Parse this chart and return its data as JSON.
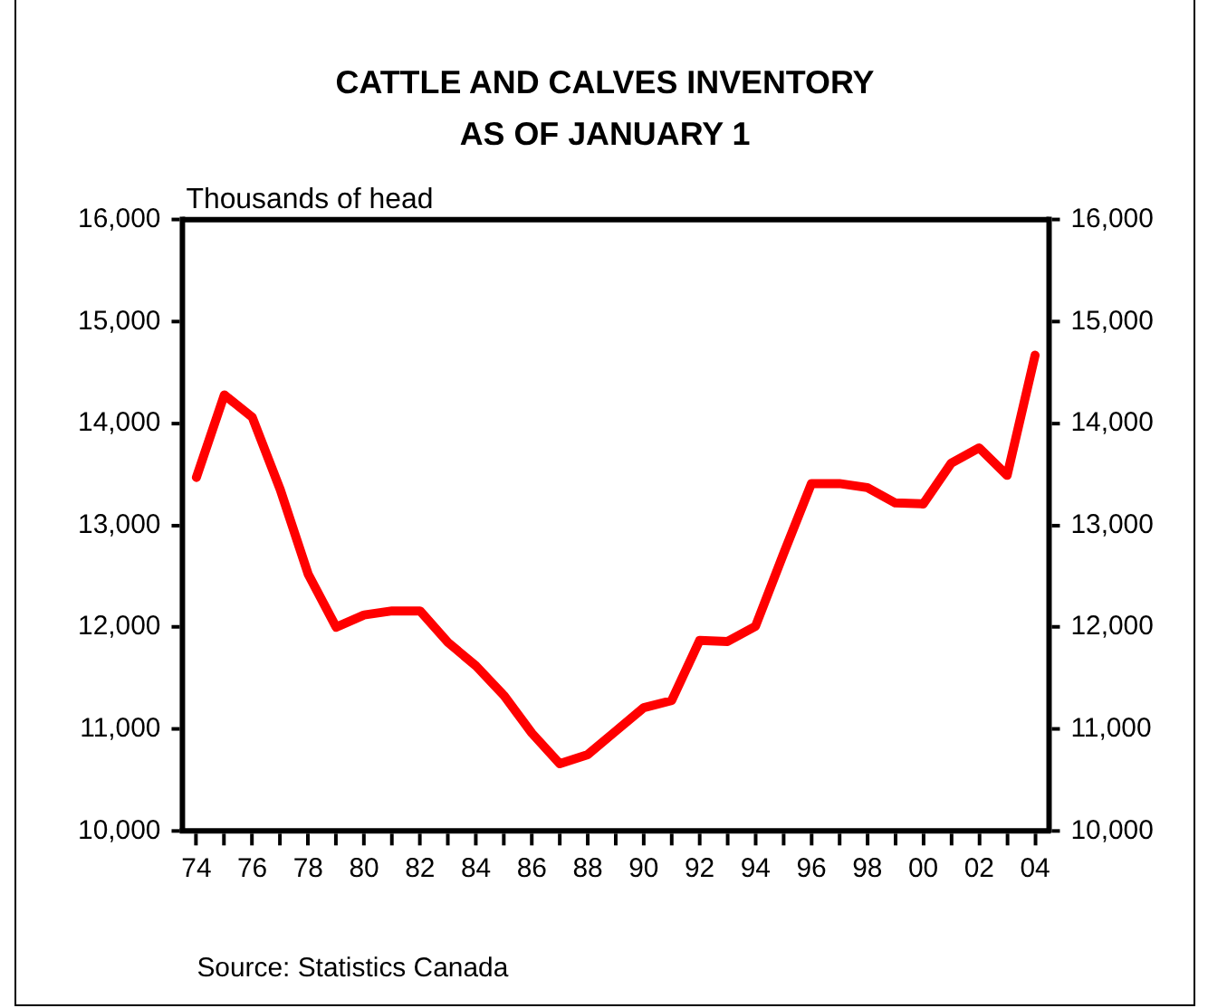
{
  "chart_data": {
    "type": "line",
    "title": "CATTLE AND CALVES INVENTORY\nAS OF JANUARY 1",
    "ylabel": "Thousands of head",
    "annotations": [
      "Source: Statistics Canada"
    ],
    "categories": [
      "74",
      null,
      "76",
      null,
      "78",
      null,
      "80",
      null,
      "82",
      null,
      "84",
      null,
      "86",
      null,
      "88",
      null,
      "90",
      null,
      "92",
      null,
      "94",
      null,
      "96",
      null,
      "98",
      null,
      "00",
      null,
      "02",
      null,
      "04"
    ],
    "series": [
      {
        "color": "#ff0000",
        "values": [
          13470,
          14280,
          14060,
          13350,
          12520,
          12000,
          12120,
          12160,
          12160,
          11850,
          11620,
          11330,
          10960,
          10660,
          10750,
          10980,
          11210,
          11280,
          11870,
          11860,
          12010,
          12720,
          13410,
          13410,
          13370,
          13220,
          13210,
          13610,
          13760,
          13490,
          14670
        ]
      }
    ],
    "ylim": [
      10000,
      16000
    ],
    "yticks": [
      {
        "value": 10000,
        "label": "10,000"
      },
      {
        "value": 11000,
        "label": "11,000"
      },
      {
        "value": 12000,
        "label": "12,000"
      },
      {
        "value": 13000,
        "label": "13,000"
      },
      {
        "value": 14000,
        "label": "14,000"
      },
      {
        "value": 15000,
        "label": "15,000"
      },
      {
        "value": 16000,
        "label": "16,000"
      }
    ],
    "y2lim": [
      10000,
      16000
    ],
    "y2ticks": [
      {
        "value": 10000,
        "label": "10,000"
      },
      {
        "value": 11000,
        "label": "11,000"
      },
      {
        "value": 12000,
        "label": "12,000"
      },
      {
        "value": 13000,
        "label": "13,000"
      },
      {
        "value": 14000,
        "label": "14,000"
      },
      {
        "value": 15000,
        "label": "15,000"
      },
      {
        "value": 16000,
        "label": "16,000"
      }
    ],
    "grid": false,
    "legend": false,
    "marker": "none",
    "line_style": "solid"
  }
}
